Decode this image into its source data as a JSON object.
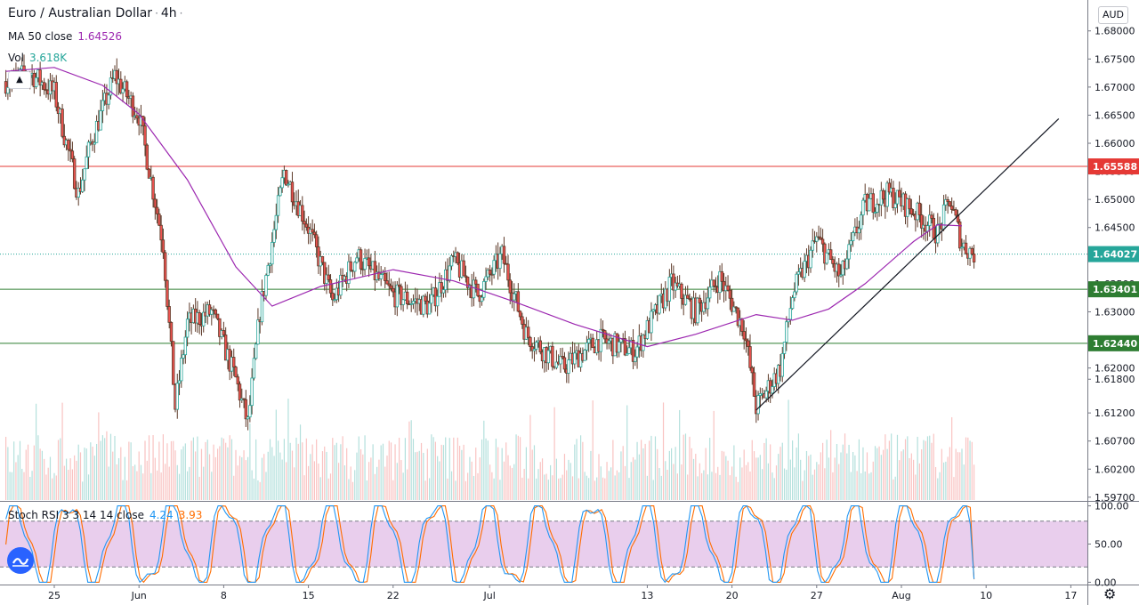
{
  "legend": {
    "symbol": "Euro / Australian Dollar",
    "interval": "4h",
    "ma_label": "MA 50 close",
    "ma_value": "1.64526",
    "vol_label": "Vol",
    "vol_value": "3.618K",
    "stoch_label": "Stoch RSI 3 3 14 14 close",
    "stoch_k": "4.24",
    "stoch_d": "3.93"
  },
  "currency": "AUD",
  "colors": {
    "up": "#26a69a",
    "down": "#ef5350",
    "candle_up_body": "#ffffff",
    "candle_dark": "#5d3a29",
    "ma": "#9c27b0",
    "resistance": "#e53935",
    "support": "#2e7d32",
    "price_line": "#26a69a",
    "stoch_k": "#2196f3",
    "stoch_d": "#ff6d00",
    "stoch_band": "#e1bee7"
  },
  "chart_data": [
    {
      "type": "candlestick",
      "title": "Euro / Australian Dollar",
      "interval": "4h",
      "y_axis_ticks": [
        "1.68000",
        "1.67500",
        "1.67000",
        "1.66500",
        "1.66000",
        "1.65500",
        "1.65000",
        "1.64500",
        "1.64000",
        "1.63500",
        "1.63000",
        "1.62500",
        "1.62000",
        "1.61800",
        "1.61200",
        "1.60700",
        "1.60200",
        "1.59700"
      ],
      "x_axis_ticks": [
        "25",
        "Jun",
        "8",
        "15",
        "22",
        "Jul",
        "13",
        "20",
        "27",
        "Aug",
        "10",
        "17"
      ],
      "ylim": [
        1.5965,
        1.6855
      ],
      "horizontal_lines": [
        {
          "value": 1.65588,
          "label": "1.65588",
          "role": "resistance"
        },
        {
          "value": 1.63401,
          "label": "1.63401",
          "role": "support"
        },
        {
          "value": 1.6244,
          "label": "1.62440",
          "role": "support"
        }
      ],
      "last_price": {
        "value": 1.64027,
        "label": "1.64027"
      },
      "trendline": {
        "from": {
          "date": "Jul 22",
          "price": 1.6125
        },
        "to": {
          "date": "Aug 11",
          "price": 1.654
        }
      },
      "ma50_path": [
        {
          "date": "May 21",
          "price": 1.6728
        },
        {
          "date": "May 25",
          "price": 1.6735
        },
        {
          "date": "May 29",
          "price": 1.6703
        },
        {
          "date": "Jun 1",
          "price": 1.6652
        },
        {
          "date": "Jun 5",
          "price": 1.6535
        },
        {
          "date": "Jun 9",
          "price": 1.638
        },
        {
          "date": "Jun 12",
          "price": 1.631
        },
        {
          "date": "Jun 16",
          "price": 1.6345
        },
        {
          "date": "Jun 22",
          "price": 1.6375
        },
        {
          "date": "Jun 27",
          "price": 1.6355
        },
        {
          "date": "Jul 2",
          "price": 1.6318
        },
        {
          "date": "Jul 7",
          "price": 1.6278
        },
        {
          "date": "Jul 13",
          "price": 1.6238
        },
        {
          "date": "Jul 17",
          "price": 1.626
        },
        {
          "date": "Jul 22",
          "price": 1.6295
        },
        {
          "date": "Jul 25",
          "price": 1.6285
        },
        {
          "date": "Jul 28",
          "price": 1.6305
        },
        {
          "date": "Jul 31",
          "price": 1.635
        },
        {
          "date": "Aug 4",
          "price": 1.6425
        },
        {
          "date": "Aug 6",
          "price": 1.6455
        },
        {
          "date": "Aug 8",
          "price": 1.6453
        }
      ],
      "price_path": [
        {
          "date": "May 21",
          "price": 1.671
        },
        {
          "date": "May 23",
          "price": 1.6725
        },
        {
          "date": "May 25",
          "price": 1.669
        },
        {
          "date": "May 27",
          "price": 1.651
        },
        {
          "date": "May 28",
          "price": 1.66
        },
        {
          "date": "May 30",
          "price": 1.672
        },
        {
          "date": "Jun 1",
          "price": 1.665
        },
        {
          "date": "Jun 3",
          "price": 1.642
        },
        {
          "date": "Jun 4",
          "price": 1.613
        },
        {
          "date": "Jun 5",
          "price": 1.628
        },
        {
          "date": "Jun 7",
          "price": 1.63
        },
        {
          "date": "Jun 9",
          "price": 1.618
        },
        {
          "date": "Jun 10",
          "price": 1.61
        },
        {
          "date": "Jun 11",
          "price": 1.63
        },
        {
          "date": "Jun 13",
          "price": 1.655
        },
        {
          "date": "Jun 15",
          "price": 1.645
        },
        {
          "date": "Jun 17",
          "price": 1.632
        },
        {
          "date": "Jun 19",
          "price": 1.64
        },
        {
          "date": "Jun 22",
          "price": 1.633
        },
        {
          "date": "Jun 25",
          "price": 1.631
        },
        {
          "date": "Jun 27",
          "price": 1.639
        },
        {
          "date": "Jun 29",
          "price": 1.633
        },
        {
          "date": "Jul 1",
          "price": 1.64
        },
        {
          "date": "Jul 3",
          "price": 1.626
        },
        {
          "date": "Jul 6",
          "price": 1.62
        },
        {
          "date": "Jul 9",
          "price": 1.625
        },
        {
          "date": "Jul 12",
          "price": 1.623
        },
        {
          "date": "Jul 15",
          "price": 1.635
        },
        {
          "date": "Jul 17",
          "price": 1.63
        },
        {
          "date": "Jul 19",
          "price": 1.636
        },
        {
          "date": "Jul 21",
          "price": 1.627
        },
        {
          "date": "Jul 22",
          "price": 1.613
        },
        {
          "date": "Jul 24",
          "price": 1.62
        },
        {
          "date": "Jul 25",
          "price": 1.633
        },
        {
          "date": "Jul 27",
          "price": 1.643
        },
        {
          "date": "Jul 29",
          "price": 1.636
        },
        {
          "date": "Jul 31",
          "price": 1.649
        },
        {
          "date": "Aug 2",
          "price": 1.651
        },
        {
          "date": "Aug 4",
          "price": 1.648
        },
        {
          "date": "Aug 6",
          "price": 1.644
        },
        {
          "date": "Aug 7",
          "price": 1.65
        },
        {
          "date": "Aug 8",
          "price": 1.642
        },
        {
          "date": "Aug 9",
          "price": 1.6403
        }
      ]
    },
    {
      "type": "line",
      "title": "Stoch RSI 3 3 14 14 close",
      "y_axis_ticks": [
        "100.00",
        "50.00",
        "0.00"
      ],
      "ylim": [
        -3,
        103
      ],
      "bands": [
        80,
        20
      ],
      "series": [
        {
          "name": "K",
          "last": 4.24
        },
        {
          "name": "D",
          "last": 3.93
        }
      ]
    }
  ]
}
